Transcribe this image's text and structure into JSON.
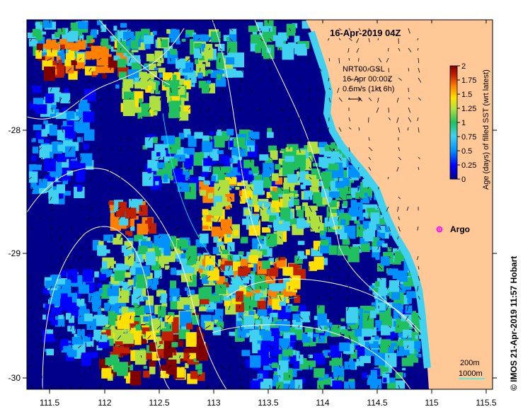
{
  "map": {
    "title": "16-Apr-2019 04Z",
    "current_source": {
      "line1": "NRT00 GSL",
      "line2": "16-Apr 00:00Z",
      "line3": "0.5m/s (1kt 6h)"
    },
    "longitude_ticks": [
      "111.5",
      "112",
      "112.5",
      "113",
      "113.5",
      "114",
      "114.5",
      "115",
      "115.5"
    ],
    "latitude_ticks": [
      "-28",
      "-29",
      "-30"
    ],
    "colorbar": {
      "label": "Age (days) of filled SST (wrt latest)",
      "ticks": [
        "2",
        "1.75",
        "1.5",
        "1.25",
        "1",
        "0.75",
        "0.5",
        "0.25",
        "0"
      ],
      "range": [
        0,
        2
      ],
      "colors": [
        "#00008b",
        "#0000ff",
        "#0090ff",
        "#40d0f0",
        "#20c060",
        "#b0e040",
        "#ffe000",
        "#ff8000",
        "#c02000",
        "#800000"
      ]
    },
    "marker": {
      "label": "Argo",
      "color": "#ff00ff"
    },
    "legend": {
      "contour_1": "200m",
      "contour_2": "1000m",
      "contour_2_color": "#00ffff"
    },
    "credit": "© IMOS 21-Apr-2019 11:57 Hobart",
    "colors": {
      "land": "#ffc896",
      "water_deep": "#00008b",
      "contour": "#ffffff"
    }
  }
}
